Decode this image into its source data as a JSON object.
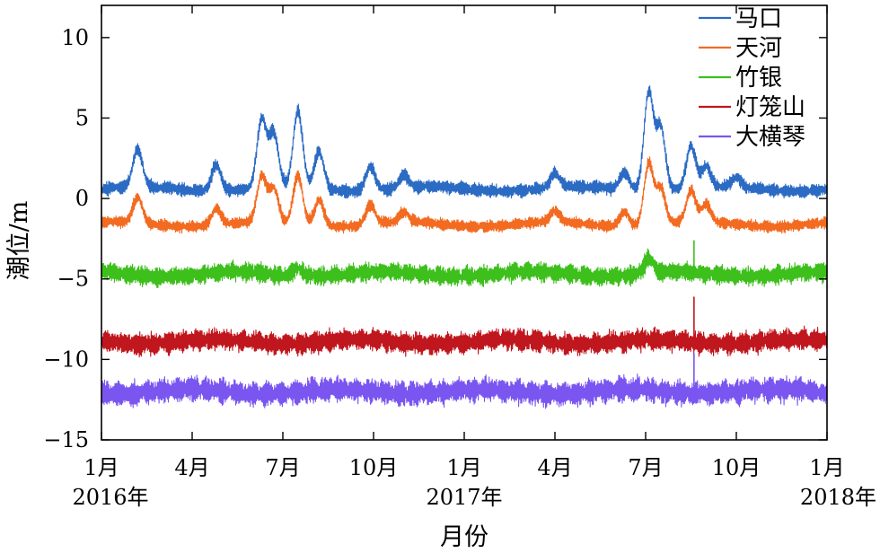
{
  "chart_data": {
    "type": "line",
    "title": "",
    "xlabel": "月份",
    "ylabel": "潮位/m",
    "ylim": [
      -15,
      12
    ],
    "xlim_months": [
      0,
      24
    ],
    "yticks": [
      {
        "value": 10,
        "label": "10"
      },
      {
        "value": 5,
        "label": "5"
      },
      {
        "value": 0,
        "label": "0"
      },
      {
        "value": -5,
        "label": "−5"
      },
      {
        "value": -10,
        "label": "−10"
      },
      {
        "value": -15,
        "label": "−15"
      }
    ],
    "xticks": [
      {
        "month": 0,
        "label": "1月",
        "year": "2016年"
      },
      {
        "month": 3,
        "label": "4月"
      },
      {
        "month": 6,
        "label": "7月"
      },
      {
        "month": 9,
        "label": "10月"
      },
      {
        "month": 12,
        "label": "1月",
        "year": "2017年"
      },
      {
        "month": 15,
        "label": "4月"
      },
      {
        "month": 18,
        "label": "7月"
      },
      {
        "month": 21,
        "label": "10月"
      },
      {
        "month": 24,
        "label": "1月",
        "year": "2018年"
      }
    ],
    "legend_position": "top-right",
    "grid": false,
    "series": [
      {
        "name": "马口",
        "color": "#2b6bc4",
        "mean": 0.6,
        "amp": 0.45,
        "peaks": [
          [
            1.2,
            2.3
          ],
          [
            3.8,
            1.6
          ],
          [
            5.3,
            4.2
          ],
          [
            5.7,
            3.3
          ],
          [
            6.5,
            4.7
          ],
          [
            7.2,
            2.3
          ],
          [
            8.9,
            1.5
          ],
          [
            10.0,
            0.8
          ],
          [
            15.0,
            0.9
          ],
          [
            17.3,
            1.1
          ],
          [
            18.1,
            6.1
          ],
          [
            18.5,
            3.9
          ],
          [
            19.5,
            2.6
          ],
          [
            20.0,
            1.3
          ],
          [
            21.0,
            0.6
          ]
        ]
      },
      {
        "name": "天河",
        "color": "#f26b21",
        "mean": -1.6,
        "amp": 0.4,
        "peaks": [
          [
            1.2,
            1.6
          ],
          [
            3.8,
            1.0
          ],
          [
            5.3,
            2.8
          ],
          [
            5.7,
            2.1
          ],
          [
            6.5,
            3.0
          ],
          [
            7.2,
            1.6
          ],
          [
            8.9,
            1.2
          ],
          [
            10.0,
            0.6
          ],
          [
            15.0,
            0.7
          ],
          [
            17.3,
            0.9
          ],
          [
            18.1,
            3.8
          ],
          [
            18.5,
            2.2
          ],
          [
            19.5,
            2.0
          ],
          [
            20.0,
            1.1
          ]
        ]
      },
      {
        "name": "竹银",
        "color": "#3dbf1c",
        "mean": -4.7,
        "amp": 0.65,
        "peaks": [
          [
            6.5,
            0.5
          ],
          [
            18.1,
            0.9
          ]
        ],
        "spike": [
          19.6,
          -2.6
        ]
      },
      {
        "name": "灯笼山",
        "color": "#c0161d",
        "mean": -8.9,
        "amp": 0.75,
        "peaks": [],
        "spike": [
          19.6,
          -6.1
        ]
      },
      {
        "name": "大横琴",
        "color": "#7a55f0",
        "mean": -12.0,
        "amp": 0.85,
        "peaks": [],
        "spike": [
          19.6,
          -9.6
        ]
      }
    ]
  }
}
